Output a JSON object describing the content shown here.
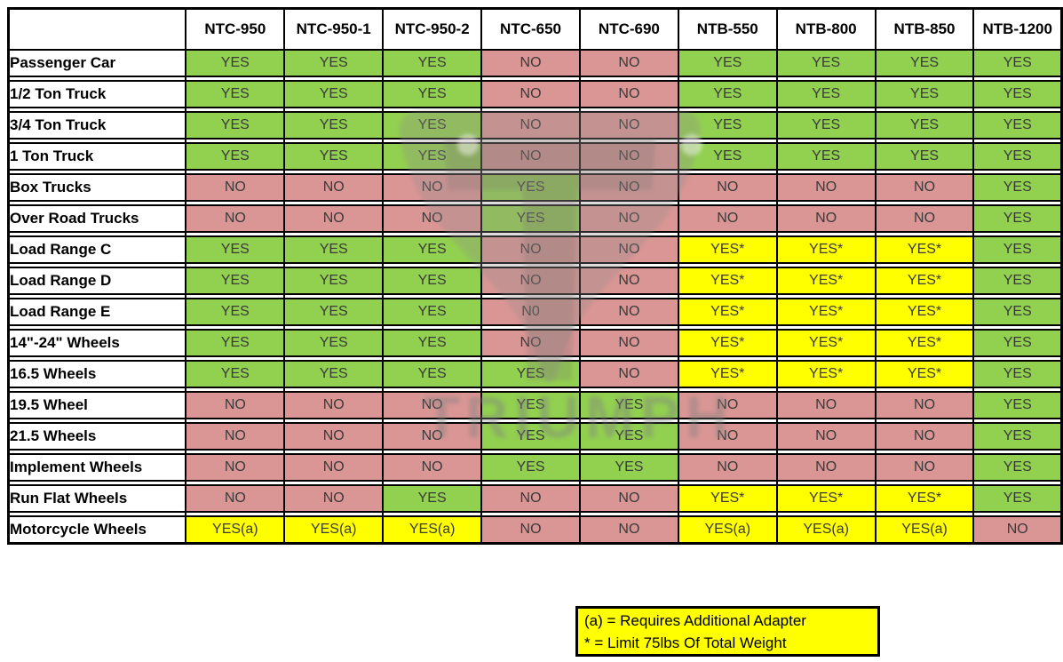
{
  "palette": {
    "yes": "#92d050",
    "no": "#d99694",
    "flag": "#ffff00",
    "grid": "#000000",
    "text": "#3a3a3a"
  },
  "watermark": {
    "text": "TRIUMPH"
  },
  "chart_data": {
    "type": "table",
    "title": "",
    "corner_label": "",
    "columns": [
      "NTC-950",
      "NTC-950-1",
      "NTC-950-2",
      "NTC-650",
      "NTC-690",
      "NTB-550",
      "NTB-800",
      "NTB-850",
      "NTB-1200"
    ],
    "rows": [
      {
        "label": "Passenger Car",
        "values": [
          "YES",
          "YES",
          "YES",
          "NO",
          "NO",
          "YES",
          "YES",
          "YES",
          "YES"
        ]
      },
      {
        "label": "1/2 Ton Truck",
        "values": [
          "YES",
          "YES",
          "YES",
          "NO",
          "NO",
          "YES",
          "YES",
          "YES",
          "YES"
        ]
      },
      {
        "label": "3/4 Ton Truck",
        "values": [
          "YES",
          "YES",
          "YES",
          "NO",
          "NO",
          "YES",
          "YES",
          "YES",
          "YES"
        ]
      },
      {
        "label": "1 Ton Truck",
        "values": [
          "YES",
          "YES",
          "YES",
          "NO",
          "NO",
          "YES",
          "YES",
          "YES",
          "YES"
        ]
      },
      {
        "label": "Box Trucks",
        "values": [
          "NO",
          "NO",
          "NO",
          "YES",
          "NO",
          "NO",
          "NO",
          "NO",
          "YES"
        ]
      },
      {
        "label": "Over Road Trucks",
        "values": [
          "NO",
          "NO",
          "NO",
          "YES",
          "NO",
          "NO",
          "NO",
          "NO",
          "YES"
        ]
      },
      {
        "label": "Load Range C",
        "values": [
          "YES",
          "YES",
          "YES",
          "NO",
          "NO",
          "YES*",
          "YES*",
          "YES*",
          "YES"
        ]
      },
      {
        "label": "Load Range D",
        "values": [
          "YES",
          "YES",
          "YES",
          "NO",
          "NO",
          "YES*",
          "YES*",
          "YES*",
          "YES"
        ]
      },
      {
        "label": "Load Range E",
        "values": [
          "YES",
          "YES",
          "YES",
          "N0",
          "NO",
          "YES*",
          "YES*",
          "YES*",
          "YES"
        ]
      },
      {
        "label": "14\"-24\" Wheels",
        "values": [
          "YES",
          "YES",
          "YES",
          "NO",
          "NO",
          "YES*",
          "YES*",
          "YES*",
          "YES"
        ]
      },
      {
        "label": "16.5 Wheels",
        "values": [
          "YES",
          "YES",
          "YES",
          "YES",
          "NO",
          "YES*",
          "YES*",
          "YES*",
          "YES"
        ]
      },
      {
        "label": "19.5 Wheel",
        "values": [
          "NO",
          "NO",
          "NO",
          "YES",
          "YES",
          "NO",
          "NO",
          "NO",
          "YES"
        ]
      },
      {
        "label": "21.5 Wheels",
        "values": [
          "NO",
          "NO",
          "NO",
          "YES",
          "YES",
          "NO",
          "NO",
          "NO",
          "YES"
        ]
      },
      {
        "label": "Implement Wheels",
        "values": [
          "NO",
          "NO",
          "NO",
          "YES",
          "YES",
          "NO",
          "NO",
          "NO",
          "YES"
        ]
      },
      {
        "label": "Run Flat Wheels",
        "values": [
          "NO",
          "NO",
          "YES",
          "NO",
          "NO",
          "YES*",
          "YES*",
          "YES*",
          "YES"
        ]
      },
      {
        "label": "Motorcycle Wheels",
        "values": [
          "YES(a)",
          "YES(a)",
          "YES(a)",
          "NO",
          "NO",
          "YES(a)",
          "YES(a)",
          "YES(a)",
          "NO"
        ]
      }
    ],
    "notes": [
      "(a) = Requires Additional Adapter",
      "* = Limit 75lbs Of Total Weight"
    ],
    "legend_position": "bottom",
    "cell_color_rules": {
      "YES": "yes",
      "NO": "no",
      "YES* / YES(a)": "flag"
    }
  }
}
